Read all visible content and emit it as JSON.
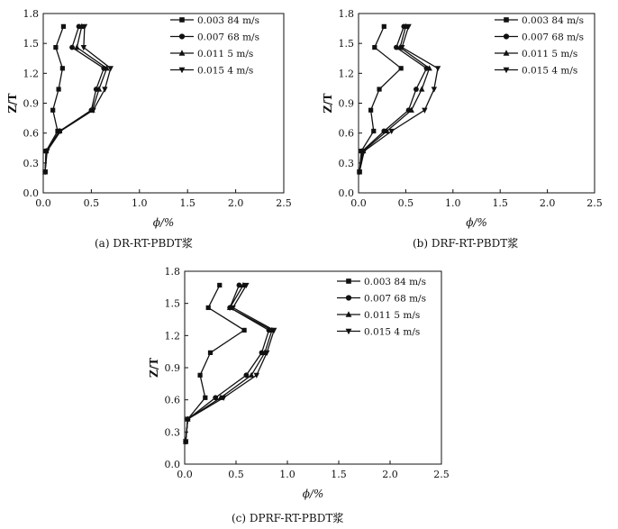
{
  "chart_data": [
    {
      "type": "line",
      "caption": "(a) DR-RT-PBDT浆",
      "xlabel": "ϕ/%",
      "ylabel": "Z/T",
      "xlim": [
        0,
        2.5
      ],
      "ylim": [
        0,
        1.8
      ],
      "xticks": [
        "0.0",
        "0.5",
        "1.0",
        "1.5",
        "2.0",
        "2.5"
      ],
      "yticks": [
        "0.0",
        "0.3",
        "0.6",
        "0.9",
        "1.2",
        "1.5",
        "1.8"
      ],
      "grid": false,
      "legend_position": "top-right",
      "series": [
        {
          "name": "0.003 84 m/s",
          "marker": "square",
          "x": [
            0.02,
            0.03,
            0.15,
            0.1,
            0.16,
            0.2,
            0.13,
            0.21
          ],
          "y": [
            0.21,
            0.42,
            0.62,
            0.83,
            1.04,
            1.25,
            1.46,
            1.67
          ]
        },
        {
          "name": "0.007 68 m/s",
          "marker": "circle",
          "x": [
            0.02,
            0.03,
            0.17,
            0.5,
            0.55,
            0.63,
            0.3,
            0.37
          ],
          "y": [
            0.21,
            0.42,
            0.62,
            0.83,
            1.04,
            1.25,
            1.46,
            1.67
          ]
        },
        {
          "name": "0.011 5 m/s",
          "marker": "triangle-up",
          "x": [
            0.02,
            0.03,
            0.17,
            0.51,
            0.58,
            0.66,
            0.35,
            0.4
          ],
          "y": [
            0.21,
            0.42,
            0.62,
            0.83,
            1.04,
            1.25,
            1.46,
            1.67
          ]
        },
        {
          "name": "0.015 4 m/s",
          "marker": "triangle-down",
          "x": [
            0.02,
            0.04,
            0.18,
            0.52,
            0.64,
            0.7,
            0.42,
            0.43
          ],
          "y": [
            0.21,
            0.42,
            0.62,
            0.83,
            1.04,
            1.25,
            1.46,
            1.67
          ]
        }
      ]
    },
    {
      "type": "line",
      "caption": "(b) DRF-RT-PBDT浆",
      "xlabel": "ϕ/%",
      "ylabel": "Z/T",
      "xlim": [
        0,
        2.5
      ],
      "ylim": [
        0,
        1.8
      ],
      "xticks": [
        "0.0",
        "0.5",
        "1.0",
        "1.5",
        "2.0",
        "2.5"
      ],
      "yticks": [
        "0.0",
        "0.3",
        "0.6",
        "0.9",
        "1.2",
        "1.5",
        "1.8"
      ],
      "grid": false,
      "legend_position": "top-right",
      "series": [
        {
          "name": "0.003 84 m/s",
          "marker": "square",
          "x": [
            0.01,
            0.03,
            0.16,
            0.13,
            0.22,
            0.45,
            0.17,
            0.27
          ],
          "y": [
            0.21,
            0.42,
            0.62,
            0.83,
            1.04,
            1.25,
            1.46,
            1.67
          ]
        },
        {
          "name": "0.007 68 m/s",
          "marker": "circle",
          "x": [
            0.01,
            0.04,
            0.27,
            0.53,
            0.61,
            0.72,
            0.4,
            0.48
          ],
          "y": [
            0.21,
            0.42,
            0.62,
            0.83,
            1.04,
            1.25,
            1.46,
            1.67
          ]
        },
        {
          "name": "0.011 5 m/s",
          "marker": "triangle-up",
          "x": [
            0.01,
            0.05,
            0.3,
            0.56,
            0.67,
            0.75,
            0.44,
            0.5
          ],
          "y": [
            0.21,
            0.42,
            0.62,
            0.83,
            1.04,
            1.25,
            1.46,
            1.67
          ]
        },
        {
          "name": "0.015 4 m/s",
          "marker": "triangle-down",
          "x": [
            0.01,
            0.06,
            0.35,
            0.7,
            0.8,
            0.84,
            0.46,
            0.53
          ],
          "y": [
            0.21,
            0.42,
            0.62,
            0.83,
            1.04,
            1.25,
            1.46,
            1.67
          ]
        }
      ]
    },
    {
      "type": "line",
      "caption": "(c) DPRF-RT-PBDT浆",
      "xlabel": "ϕ/%",
      "ylabel": "Z/T",
      "xlim": [
        0,
        2.5
      ],
      "ylim": [
        0,
        1.8
      ],
      "xticks": [
        "0.0",
        "0.5",
        "1.0",
        "1.5",
        "2.0",
        "2.5"
      ],
      "yticks": [
        "0.0",
        "0.3",
        "0.6",
        "0.9",
        "1.2",
        "1.5",
        "1.8"
      ],
      "grid": false,
      "legend_position": "top-right",
      "series": [
        {
          "name": "0.003 84 m/s",
          "marker": "square",
          "x": [
            0.01,
            0.03,
            0.2,
            0.15,
            0.25,
            0.58,
            0.23,
            0.34
          ],
          "y": [
            0.21,
            0.42,
            0.62,
            0.83,
            1.04,
            1.25,
            1.46,
            1.67
          ]
        },
        {
          "name": "0.007 68 m/s",
          "marker": "circle",
          "x": [
            0.01,
            0.03,
            0.3,
            0.6,
            0.75,
            0.82,
            0.44,
            0.53
          ],
          "y": [
            0.21,
            0.42,
            0.62,
            0.83,
            1.04,
            1.25,
            1.46,
            1.67
          ]
        },
        {
          "name": "0.011 5 m/s",
          "marker": "triangle-up",
          "x": [
            0.01,
            0.03,
            0.35,
            0.65,
            0.78,
            0.85,
            0.44,
            0.57
          ],
          "y": [
            0.21,
            0.42,
            0.62,
            0.83,
            1.04,
            1.25,
            1.46,
            1.67
          ]
        },
        {
          "name": "0.015 4 m/s",
          "marker": "triangle-down",
          "x": [
            0.01,
            0.03,
            0.38,
            0.7,
            0.8,
            0.87,
            0.47,
            0.6
          ],
          "y": [
            0.21,
            0.42,
            0.62,
            0.83,
            1.04,
            1.25,
            1.46,
            1.67
          ]
        }
      ]
    }
  ]
}
